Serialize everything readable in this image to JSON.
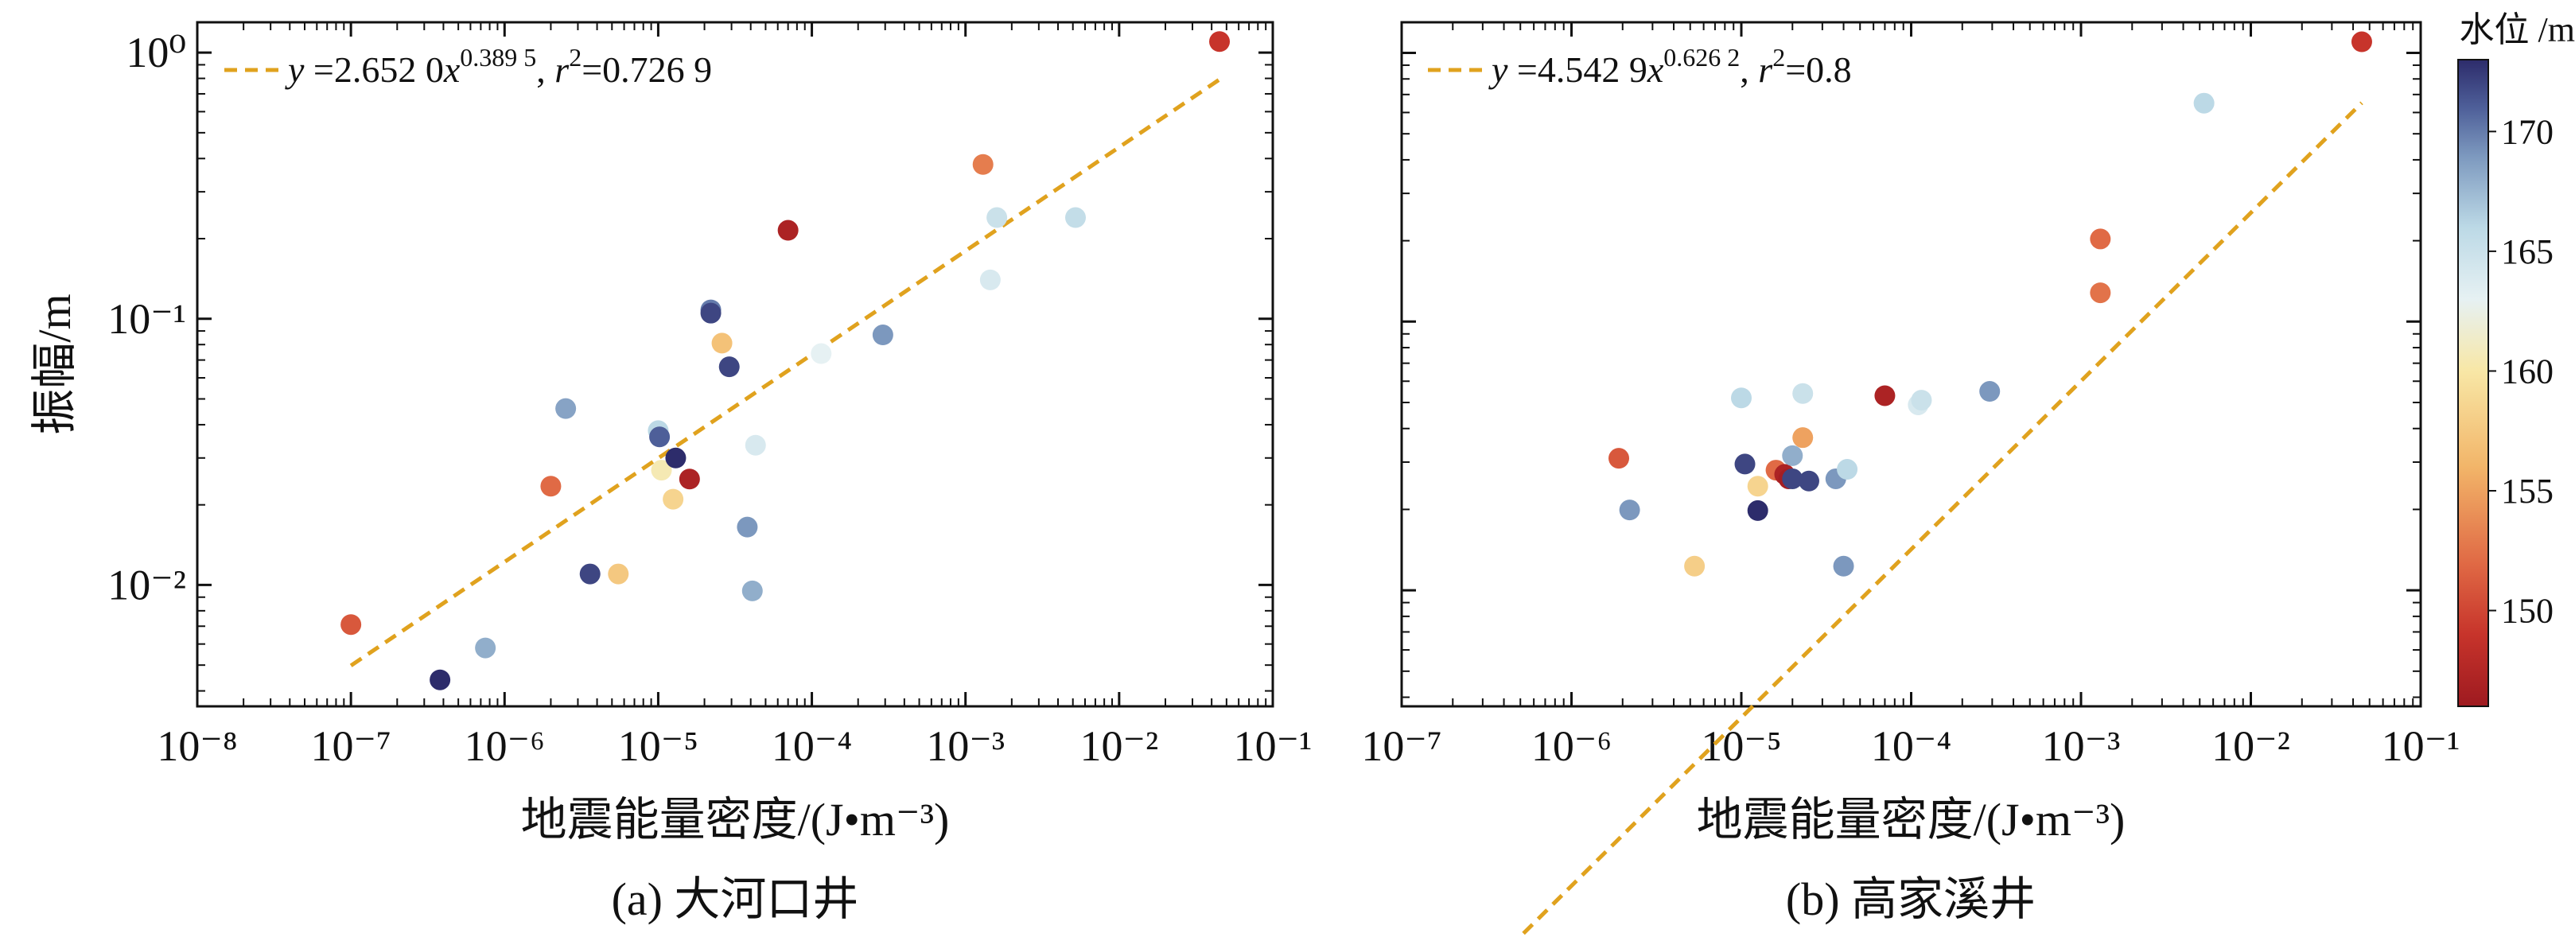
{
  "chart_data": [
    {
      "type": "scatter",
      "id": "a",
      "caption": "(a) 大河口井",
      "xlabel": "地震能量密度/(J•m⁻³)",
      "ylabel": "振幅/m",
      "xscale": "log",
      "yscale": "log",
      "xlim": [
        1e-08,
        0.1
      ],
      "ylim": [
        0.0035,
        1.3
      ],
      "xticks": [
        {
          "exp": -8
        },
        {
          "exp": -7
        },
        {
          "exp": -6
        },
        {
          "exp": -5
        },
        {
          "exp": -4
        },
        {
          "exp": -3
        },
        {
          "exp": -2
        },
        {
          "exp": -1
        }
      ],
      "yticks": [
        {
          "exp": -2
        },
        {
          "exp": -1
        },
        {
          "exp": 0
        }
      ],
      "show_y_labels": true,
      "legend": {
        "text": "y =2.652 0x^0.389 5, r²=0.726 9",
        "y": "y",
        "a": " =2.652 0",
        "x": "x",
        "sup_exp": "0.389 5",
        "sep": ", ",
        "r": "r",
        "sup_r": "2",
        "rest": "=0.726 9",
        "position": "top-left"
      },
      "fit": {
        "a": 2.652,
        "b": 0.3895,
        "x_range": [
          1e-07,
          0.045
        ],
        "color": "#E0A21E"
      },
      "points": [
        {
          "x": 1e-07,
          "y": 0.0071,
          "level": 151
        },
        {
          "x": 3.8e-07,
          "y": 0.0044,
          "level": 173
        },
        {
          "x": 7.5e-07,
          "y": 0.0058,
          "level": 168
        },
        {
          "x": 2e-06,
          "y": 0.0235,
          "level": 152
        },
        {
          "x": 2.5e-06,
          "y": 0.046,
          "level": 168.5
        },
        {
          "x": 3.6e-06,
          "y": 0.011,
          "level": 172
        },
        {
          "x": 5.5e-06,
          "y": 0.011,
          "level": 157.5
        },
        {
          "x": 1e-05,
          "y": 0.038,
          "level": 166
        },
        {
          "x": 1.02e-05,
          "y": 0.036,
          "level": 171
        },
        {
          "x": 1.05e-05,
          "y": 0.027,
          "level": 160.5
        },
        {
          "x": 1.25e-05,
          "y": 0.021,
          "level": 158.5
        },
        {
          "x": 1.3e-05,
          "y": 0.03,
          "level": 173
        },
        {
          "x": 1.6e-05,
          "y": 0.025,
          "level": 147
        },
        {
          "x": 2.2e-05,
          "y": 0.108,
          "level": 170
        },
        {
          "x": 2.2e-05,
          "y": 0.105,
          "level": 172
        },
        {
          "x": 2.6e-05,
          "y": 0.081,
          "level": 157
        },
        {
          "x": 2.9e-05,
          "y": 0.066,
          "level": 172
        },
        {
          "x": 3.8e-05,
          "y": 0.0165,
          "level": 169
        },
        {
          "x": 4.1e-05,
          "y": 0.0095,
          "level": 168
        },
        {
          "x": 4.3e-05,
          "y": 0.0335,
          "level": 164
        },
        {
          "x": 7e-05,
          "y": 0.215,
          "level": 147
        },
        {
          "x": 0.000115,
          "y": 0.074,
          "level": 163
        },
        {
          "x": 0.00029,
          "y": 0.087,
          "level": 169
        },
        {
          "x": 0.0013,
          "y": 0.38,
          "level": 153
        },
        {
          "x": 0.00145,
          "y": 0.14,
          "level": 164
        },
        {
          "x": 0.0016,
          "y": 0.24,
          "level": 165
        },
        {
          "x": 0.0052,
          "y": 0.24,
          "level": 165.5
        },
        {
          "x": 0.045,
          "y": 1.1,
          "level": 149
        }
      ]
    },
    {
      "type": "scatter",
      "id": "b",
      "caption": "(b) 高家溪井",
      "xlabel": "地震能量密度/(J•m⁻³)",
      "ylabel": "",
      "xscale": "log",
      "yscale": "log",
      "xlim": [
        1e-07,
        0.1
      ],
      "ylim": [
        0.0037,
        1.3
      ],
      "xticks": [
        {
          "exp": -7
        },
        {
          "exp": -6
        },
        {
          "exp": -5
        },
        {
          "exp": -4
        },
        {
          "exp": -3
        },
        {
          "exp": -2
        },
        {
          "exp": -1
        }
      ],
      "yticks": [
        {
          "exp": -2
        },
        {
          "exp": -1
        },
        {
          "exp": 0
        }
      ],
      "show_y_labels": false,
      "legend": {
        "text": "y =4.542 9x^0.626 2, r²=0.8",
        "y": "y",
        "a": " =4.542 9",
        "x": "x",
        "sup_exp": "0.626 2",
        "sep": ", ",
        "r": "r",
        "sup_r": "2",
        "rest": "=0.8",
        "position": "top-left"
      },
      "fit": {
        "a": 4.5429,
        "b": 0.6262,
        "x_range": [
          3.5e-07,
          0.045
        ],
        "color": "#E0A21E"
      },
      "points": [
        {
          "x": 1.9e-06,
          "y": 0.031,
          "level": 151
        },
        {
          "x": 2.2e-06,
          "y": 0.0199,
          "level": 169
        },
        {
          "x": 5.3e-06,
          "y": 0.0123,
          "level": 158
        },
        {
          "x": 1e-05,
          "y": 0.052,
          "level": 166
        },
        {
          "x": 1.05e-05,
          "y": 0.0295,
          "level": 172
        },
        {
          "x": 1.25e-05,
          "y": 0.0198,
          "level": 173
        },
        {
          "x": 1.25e-05,
          "y": 0.0244,
          "level": 158.5
        },
        {
          "x": 1.6e-05,
          "y": 0.028,
          "level": 152
        },
        {
          "x": 1.8e-05,
          "y": 0.027,
          "level": 147
        },
        {
          "x": 1.9e-05,
          "y": 0.026,
          "level": 146.5
        },
        {
          "x": 2e-05,
          "y": 0.0317,
          "level": 168
        },
        {
          "x": 2e-05,
          "y": 0.026,
          "level": 172
        },
        {
          "x": 2.3e-05,
          "y": 0.054,
          "level": 165
        },
        {
          "x": 2.3e-05,
          "y": 0.037,
          "level": 155
        },
        {
          "x": 2.5e-05,
          "y": 0.0255,
          "level": 172
        },
        {
          "x": 3.6e-05,
          "y": 0.026,
          "level": 169
        },
        {
          "x": 4e-05,
          "y": 0.0123,
          "level": 169
        },
        {
          "x": 4.2e-05,
          "y": 0.0282,
          "level": 166
        },
        {
          "x": 7e-05,
          "y": 0.053,
          "level": 147
        },
        {
          "x": 0.00011,
          "y": 0.049,
          "level": 164
        },
        {
          "x": 0.000115,
          "y": 0.051,
          "level": 165
        },
        {
          "x": 0.00029,
          "y": 0.055,
          "level": 169
        },
        {
          "x": 0.0013,
          "y": 0.203,
          "level": 152
        },
        {
          "x": 0.0013,
          "y": 0.128,
          "level": 152.5
        },
        {
          "x": 0.0053,
          "y": 0.65,
          "level": 166
        },
        {
          "x": 0.045,
          "y": 1.1,
          "level": 149
        }
      ]
    }
  ],
  "colorbar": {
    "label": "水位 /m",
    "min": 146,
    "max": 173,
    "ticks": [
      150,
      155,
      160,
      165,
      170
    ],
    "stops": [
      {
        "v": 146,
        "color": "#9E1A20"
      },
      {
        "v": 149,
        "color": "#C7342B"
      },
      {
        "v": 152,
        "color": "#E06A45"
      },
      {
        "v": 156,
        "color": "#F2B569"
      },
      {
        "v": 160,
        "color": "#F8E7A6"
      },
      {
        "v": 163,
        "color": "#E6F1F3"
      },
      {
        "v": 166,
        "color": "#BCD9E6"
      },
      {
        "v": 169,
        "color": "#7C98BE"
      },
      {
        "v": 171,
        "color": "#4E5F99"
      },
      {
        "v": 173,
        "color": "#2D2C6B"
      }
    ]
  }
}
